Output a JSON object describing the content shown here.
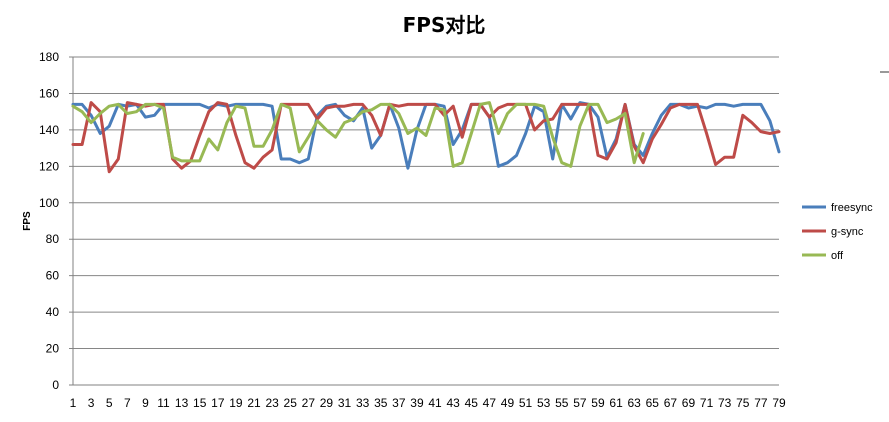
{
  "chart_data": {
    "type": "line",
    "title": "FPS对比",
    "xlabel": "",
    "ylabel": "FPS",
    "ylim": [
      0,
      180
    ],
    "yticks": [
      0,
      20,
      40,
      60,
      80,
      100,
      120,
      140,
      160,
      180
    ],
    "x_tick_labels": [
      "1",
      "3",
      "5",
      "7",
      "9",
      "11",
      "13",
      "15",
      "17",
      "19",
      "21",
      "23",
      "25",
      "27",
      "29",
      "31",
      "33",
      "35",
      "37",
      "39",
      "41",
      "43",
      "45",
      "47",
      "49",
      "51",
      "53",
      "55",
      "57",
      "59",
      "61",
      "63",
      "65",
      "67",
      "69",
      "71",
      "73",
      "75",
      "77",
      "79"
    ],
    "grid": true,
    "legend_position": "right",
    "series": [
      {
        "name": "freesync",
        "color": "#4a7ebb",
        "x": [
          1,
          2,
          3,
          4,
          5,
          6,
          7,
          8,
          9,
          10,
          11,
          12,
          13,
          14,
          15,
          16,
          17,
          18,
          19,
          20,
          21,
          22,
          23,
          24,
          25,
          26,
          27,
          28,
          29,
          30,
          31,
          32,
          33,
          34,
          35,
          36,
          37,
          38,
          39,
          40,
          41,
          42,
          43,
          44,
          45,
          46,
          47,
          48,
          49,
          50,
          51,
          52,
          53,
          54,
          55,
          56,
          57,
          58,
          59,
          60,
          61,
          62,
          63,
          64,
          65,
          66,
          67,
          68,
          69,
          70,
          71,
          72,
          73,
          74,
          75,
          76,
          77,
          78,
          79
        ],
        "values": [
          154,
          154,
          148,
          138,
          142,
          154,
          153,
          154,
          147,
          148,
          154,
          154,
          154,
          154,
          154,
          152,
          154,
          153,
          154,
          154,
          154,
          154,
          153,
          124,
          124,
          122,
          124,
          148,
          153,
          154,
          148,
          145,
          152,
          130,
          137,
          154,
          141,
          119,
          140,
          154,
          154,
          153,
          132,
          140,
          154,
          154,
          147,
          120,
          122,
          126,
          138,
          153,
          150,
          124,
          154,
          146,
          155,
          154,
          147,
          125,
          135,
          154,
          132,
          126,
          138,
          148,
          154,
          154,
          152,
          153,
          152,
          154,
          154,
          153,
          154,
          154,
          154,
          145,
          128
        ]
      },
      {
        "name": "g-sync",
        "color": "#be4b48",
        "x": [
          1,
          2,
          3,
          4,
          5,
          6,
          7,
          8,
          9,
          10,
          11,
          12,
          13,
          14,
          15,
          16,
          17,
          18,
          19,
          20,
          21,
          22,
          23,
          24,
          25,
          26,
          27,
          28,
          29,
          30,
          31,
          32,
          33,
          34,
          35,
          36,
          37,
          38,
          39,
          40,
          41,
          42,
          43,
          44,
          45,
          46,
          47,
          48,
          49,
          50,
          51,
          52,
          53,
          54,
          55,
          56,
          57,
          58,
          59,
          60,
          61,
          62,
          63,
          64,
          65,
          66,
          67,
          68,
          69,
          70,
          71,
          72,
          73,
          74,
          75,
          76,
          77,
          78,
          79
        ],
        "values": [
          132,
          132,
          155,
          150,
          117,
          124,
          155,
          154,
          153,
          154,
          154,
          124,
          119,
          123,
          137,
          150,
          155,
          154,
          137,
          122,
          119,
          125,
          129,
          154,
          154,
          154,
          154,
          146,
          152,
          153,
          153,
          154,
          154,
          148,
          137,
          154,
          153,
          154,
          154,
          154,
          154,
          148,
          153,
          136,
          154,
          154,
          147,
          152,
          154,
          154,
          154,
          140,
          145,
          146,
          154,
          154,
          154,
          154,
          126,
          124,
          133,
          154,
          131,
          122,
          135,
          143,
          152,
          154,
          154,
          154,
          138,
          121,
          125,
          125,
          148,
          144,
          139,
          138,
          139
        ]
      },
      {
        "name": "off",
        "color": "#98b954",
        "x": [
          1,
          2,
          3,
          4,
          5,
          6,
          7,
          8,
          9,
          10,
          11,
          12,
          13,
          14,
          15,
          16,
          17,
          18,
          19,
          20,
          21,
          22,
          23,
          24,
          25,
          26,
          27,
          28,
          29,
          30,
          31,
          32,
          33,
          34,
          35,
          36,
          37,
          38,
          39,
          40,
          41,
          42,
          43,
          44,
          45,
          46,
          47,
          48,
          49,
          50,
          51,
          52,
          53,
          54,
          55,
          56,
          57,
          58,
          59,
          60,
          61,
          62,
          63,
          64
        ],
        "values": [
          153,
          150,
          144,
          149,
          153,
          154,
          149,
          150,
          154,
          154,
          152,
          125,
          123,
          123,
          123,
          135,
          129,
          144,
          153,
          152,
          131,
          131,
          140,
          154,
          152,
          128,
          136,
          145,
          140,
          136,
          144,
          146,
          150,
          151,
          154,
          154,
          149,
          138,
          141,
          137,
          152,
          151,
          120,
          122,
          138,
          154,
          155,
          138,
          149,
          154,
          154,
          154,
          153,
          136,
          122,
          120,
          142,
          154,
          154,
          144,
          146,
          149,
          122,
          138
        ]
      }
    ]
  }
}
